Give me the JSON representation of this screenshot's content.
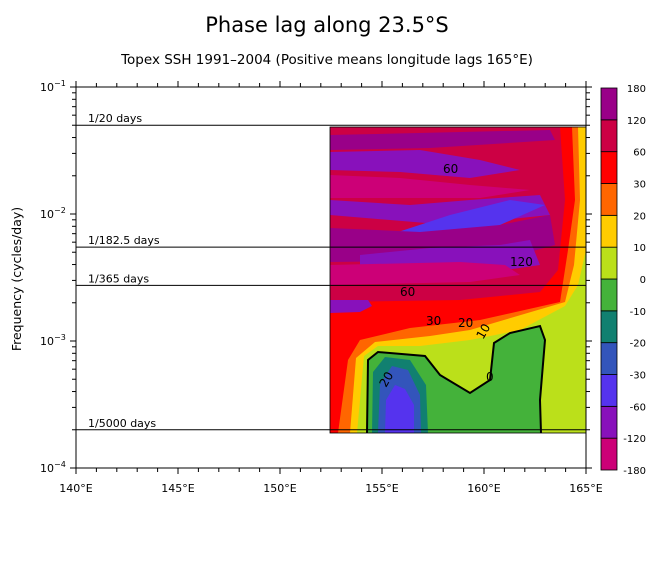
{
  "chart_data": {
    "type": "heatmap",
    "title": "Phase lag along 23.5°S",
    "subtitle": "Topex SSH 1991–2004 (Positive means longitude lags 165°E)",
    "xlabel": "",
    "ylabel": "Frequency (cycles/day)",
    "xlim": [
      140,
      165
    ],
    "ylim": [
      0.0001,
      0.1
    ],
    "yscale": "log",
    "x_ticks": [
      {
        "value": 140,
        "label": "140°E"
      },
      {
        "value": 145,
        "label": "145°E"
      },
      {
        "value": 150,
        "label": "150°E"
      },
      {
        "value": 155,
        "label": "155°E"
      },
      {
        "value": 160,
        "label": "160°E"
      },
      {
        "value": 165,
        "label": "165°E"
      }
    ],
    "y_ticks": [
      {
        "value": 0.1,
        "base": "10",
        "exp": "−1"
      },
      {
        "value": 0.01,
        "base": "10",
        "exp": "−2"
      },
      {
        "value": 0.001,
        "base": "10",
        "exp": "−3"
      },
      {
        "value": 0.0001,
        "base": "10",
        "exp": "−4"
      }
    ],
    "reference_lines": [
      {
        "frequency": 0.05,
        "label": "1/20 days"
      },
      {
        "frequency": 0.005479,
        "label": "1/182.5 days"
      },
      {
        "frequency": 0.00274,
        "label": "1/365 days"
      },
      {
        "frequency": 0.0002,
        "label": "1/5000 days"
      }
    ],
    "data_extent": {
      "lon": [
        152.5,
        165
      ],
      "frequency": [
        0.0002,
        0.05
      ]
    },
    "colorbar": {
      "levels": [
        -180,
        -120,
        -60,
        -30,
        -20,
        -10,
        0,
        10,
        20,
        30,
        60,
        120,
        180
      ],
      "labels": [
        "-180",
        "-120",
        "-60",
        "-30",
        "-20",
        "-10",
        "0",
        "10",
        "20",
        "30",
        "60",
        "120",
        "180"
      ],
      "colors": [
        "#cc0077",
        "#8811bb",
        "#5533ee",
        "#3355bb",
        "#118070",
        "#44b23a",
        "#bbe01a",
        "#ffcc00",
        "#ff6600",
        "#ff0000",
        "#cc0044",
        "#990088"
      ]
    },
    "contour_labels": [
      "60",
      "120",
      "60",
      "30",
      "20",
      "10",
      "0",
      "20"
    ]
  }
}
